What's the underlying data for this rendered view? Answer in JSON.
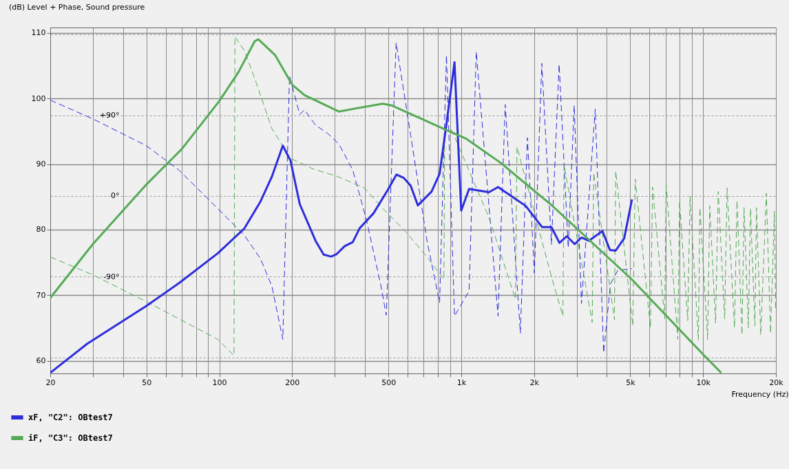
{
  "chart_data": {
    "type": "line",
    "xlabel": "Frequency  (Hz)",
    "title": "(dB)  Level + Phase, Sound pressure",
    "log": "x",
    "grid": true,
    "legend": "bottom left",
    "xlim": [
      20,
      20000
    ],
    "xticks": [
      20,
      {
        "value": 30,
        "label": null
      },
      {
        "value": 40,
        "label": null
      },
      50,
      {
        "value": 60,
        "label": null
      },
      {
        "value": 70,
        "label": null
      },
      {
        "value": 80,
        "label": null
      },
      {
        "value": 90,
        "label": null
      },
      100,
      200,
      {
        "value": 300,
        "label": null
      },
      {
        "value": 400,
        "label": null
      },
      500,
      {
        "value": 600,
        "label": null
      },
      {
        "value": 700,
        "label": null
      },
      {
        "value": 800,
        "label": null
      },
      {
        "value": 900,
        "label": null
      },
      {
        "value": 1000,
        "label": "1k"
      },
      {
        "value": 2000,
        "label": "2k"
      },
      {
        "value": 3000,
        "label": null
      },
      {
        "value": 4000,
        "label": null
      },
      {
        "value": 5000,
        "label": "5k"
      },
      {
        "value": 6000,
        "label": null
      },
      {
        "value": 7000,
        "label": null
      },
      {
        "value": 8000,
        "label": null
      },
      {
        "value": 9000,
        "label": null
      },
      {
        "value": 10000,
        "label": "10k"
      },
      {
        "value": 20000,
        "label": "20k"
      }
    ],
    "ylim": [
      58.1,
      110.8
    ],
    "yticks": [
      60,
      70,
      80,
      90,
      100,
      110
    ],
    "y2lim": [
      -198,
      188
    ],
    "y2ticks": [
      {
        "value": -180,
        "label": null
      },
      {
        "value": -90,
        "label": "-90°"
      },
      {
        "value": 0,
        "label": "0°"
      },
      {
        "value": 90,
        "label": "+90°"
      },
      {
        "value": 180,
        "label": null
      }
    ],
    "series": [
      {
        "name": "xF, \"C2\": OBtest7",
        "color": "#2d2ddc",
        "line_style": "solid",
        "x": [
          20,
          28.4,
          50,
          68.4,
          98.5,
          127,
          148,
          165,
          183,
          197,
          215,
          250,
          270,
          290,
          306,
          330,
          356,
          380,
          434,
          496,
          540,
          578,
          618,
          662,
          754,
          814,
          869,
          938,
          1000,
          1078,
          1302,
          1420,
          1850,
          2158,
          2360,
          2548,
          2732,
          2946,
          3142,
          3372,
          3834,
          4120,
          4350,
          4720,
          5080
        ],
        "values": [
          58.2,
          62.6,
          68.4,
          71.9,
          76.4,
          80.2,
          84.3,
          88.1,
          92.8,
          90.5,
          83.9,
          78.3,
          76.2,
          75.9,
          76.3,
          77.5,
          78.1,
          80.2,
          82.5,
          86.0,
          88.4,
          87.9,
          86.7,
          83.7,
          85.8,
          88.5,
          96.1,
          105.5,
          82.9,
          86.2,
          85.7,
          86.5,
          83.6,
          80.4,
          80.4,
          78.0,
          79.0,
          77.8,
          78.8,
          78.3,
          79.8,
          76.9,
          76.8,
          78.7,
          84.6
        ]
      },
      {
        "name": "iF, \"C3\": OBtest7",
        "color": "#55aa55",
        "line_style": "solid",
        "x": [
          20,
          30,
          50,
          70,
          100,
          120,
          140,
          145,
          170,
          200,
          225,
          312,
          474,
          518,
          674,
          878,
          1044,
          1454,
          2116,
          2338,
          5080,
          9880,
          11880
        ],
        "values": [
          69.6,
          77.8,
          86.9,
          92.3,
          99.6,
          104.0,
          108.7,
          109.0,
          106.6,
          102.1,
          100.5,
          98.0,
          99.2,
          98.9,
          97.0,
          95.1,
          93.9,
          90.2,
          85.2,
          83.9,
          72.4,
          61.2,
          58.2
        ]
      },
      {
        "color": "#2d2ddc",
        "line_style": "dashed",
        "axis": "y2",
        "x": [
          20,
          30,
          50,
          68,
          98.5,
          127,
          148,
          165,
          183,
          195,
          215,
          225,
          250,
          280,
          312,
          356,
          406,
          464,
          490,
          538,
          618,
          722,
          814,
          869,
          938,
          1078,
          1154,
          1420,
          1520,
          1756,
          1878,
          2006,
          2154,
          2360,
          2540,
          2770,
          2930,
          3142,
          3580,
          3880,
          4140,
          4440,
          5080
        ],
        "values": [
          107,
          86,
          56,
          29,
          -14,
          -44,
          -70,
          -101,
          -160,
          134,
          91,
          96,
          79,
          70,
          58,
          29,
          -27,
          -98,
          -133,
          171,
          68,
          -50,
          -119,
          157,
          -134,
          -106,
          161,
          -134,
          102,
          -153,
          65,
          -86,
          148,
          -54,
          147,
          -58,
          101,
          -120,
          97,
          -175,
          -98,
          -83,
          -81
        ]
      },
      {
        "color": "#55aa55",
        "line_style": "dashed",
        "axis": "y2",
        "x": [
          20,
          30,
          50,
          68,
          98.5,
          115,
          116,
          127,
          141,
          165,
          197,
          245,
          306,
          398,
          474,
          590,
          722,
          848,
          855,
          916,
          1044,
          1302,
          1676,
          1700,
          2338,
          2632,
          2660,
          3480,
          3530,
          4300,
          4350,
          5120,
          5240,
          6060,
          6180,
          6940,
          7030,
          7860,
          7990,
          8640,
          8830,
          9560,
          9700,
          10440,
          10650,
          11260,
          11550,
          12280,
          12560,
          13480,
          13810,
          14480,
          14770,
          15380,
          15700,
          16370,
          16620,
          17310,
          18260,
          19000,
          19720,
          19950
        ],
        "values": [
          -68,
          -88,
          -118,
          -137,
          -160,
          -178,
          178,
          162,
          129,
          75,
          42,
          30,
          22,
          9,
          -14,
          -40,
          -68,
          -93,
          75,
          73,
          37,
          -24,
          -115,
          55,
          -86,
          -134,
          35,
          -141,
          26,
          -138,
          28,
          -145,
          19,
          -147,
          10,
          -137,
          14,
          -160,
          -6,
          -139,
          0,
          -161,
          -13,
          -160,
          -11,
          -142,
          5,
          -137,
          9,
          -147,
          -5,
          -155,
          -13,
          -147,
          -14,
          -145,
          -13,
          -155,
          3,
          -153,
          -17,
          -129
        ]
      }
    ]
  }
}
